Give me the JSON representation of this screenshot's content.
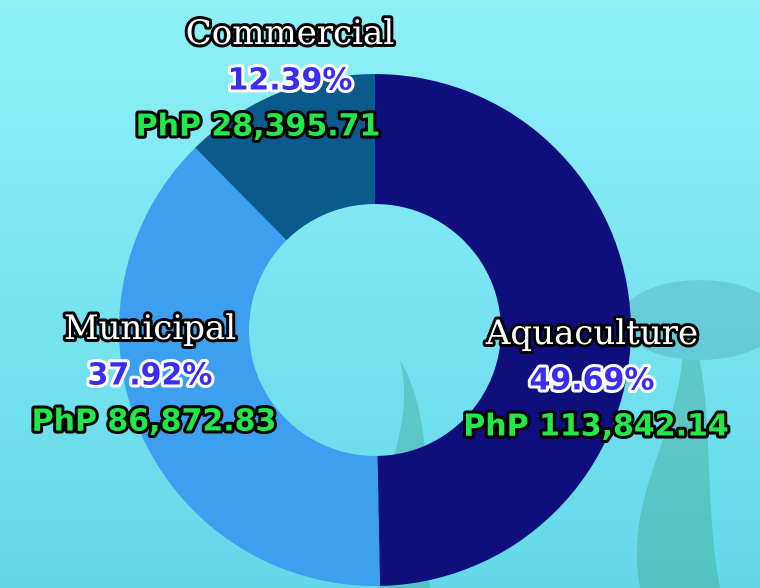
{
  "chart_data": {
    "type": "donut",
    "categories": [
      "Aquaculture",
      "Municipal",
      "Commercial"
    ],
    "values": [
      49.69,
      37.92,
      12.39
    ],
    "value_labels": [
      "49.69%",
      "37.92%",
      "12.39%"
    ],
    "amounts": [
      113842.14,
      86872.83,
      28395.71
    ],
    "amount_labels": [
      "PhP 113,842.14",
      "PhP 86,872.83",
      "PhP 28,395.71"
    ],
    "colors": [
      "#0e0e7c",
      "#3c9ff0",
      "#0b5a8c"
    ]
  }
}
